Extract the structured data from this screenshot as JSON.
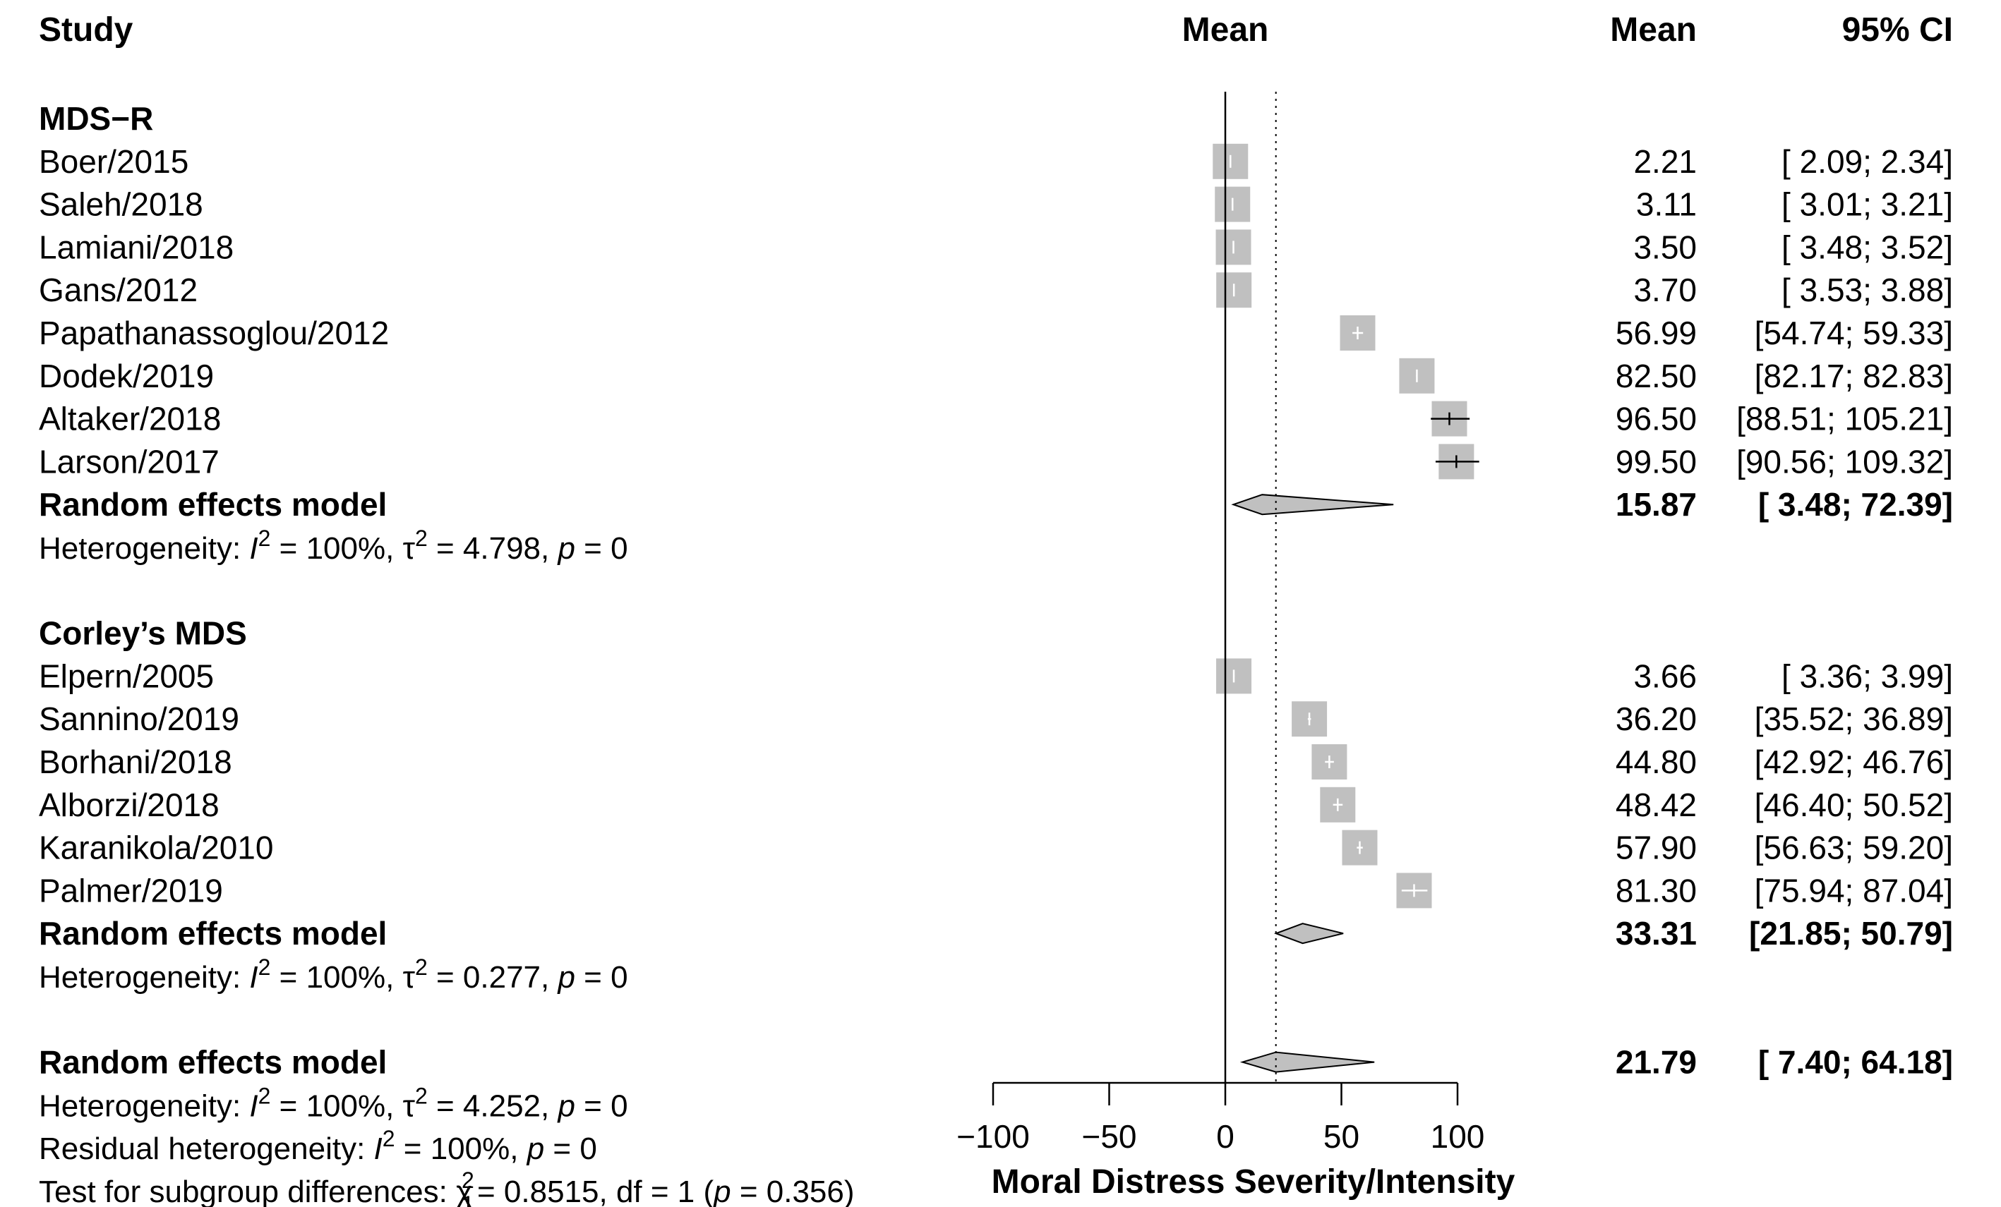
{
  "headers": {
    "study": "Study",
    "plot_mean": "Mean",
    "mean": "Mean",
    "ci": "95% CI"
  },
  "chart_data": {
    "type": "forest",
    "xlabel": "Moral Distress Severity/Intensity",
    "xticks": [
      "−100",
      "−50",
      "0",
      "50",
      "100"
    ],
    "xtick_values": [
      -100,
      -50,
      0,
      50,
      100
    ],
    "xlim": [
      -100,
      100
    ],
    "reference_line": 0,
    "overall_line": 21.79,
    "groups": [
      {
        "name": "MDS−R",
        "studies": [
          {
            "study": "Boer/2015",
            "mean": 2.21,
            "lo": 2.09,
            "hi": 2.34,
            "mean_text": "2.21",
            "ci_text": "[ 2.09;   2.34]"
          },
          {
            "study": "Saleh/2018",
            "mean": 3.11,
            "lo": 3.01,
            "hi": 3.21,
            "mean_text": "3.11",
            "ci_text": "[ 3.01;   3.21]"
          },
          {
            "study": "Lamiani/2018",
            "mean": 3.5,
            "lo": 3.48,
            "hi": 3.52,
            "mean_text": "3.50",
            "ci_text": "[ 3.48;   3.52]"
          },
          {
            "study": "Gans/2012",
            "mean": 3.7,
            "lo": 3.53,
            "hi": 3.88,
            "mean_text": "3.70",
            "ci_text": "[ 3.53;   3.88]"
          },
          {
            "study": "Papathanassoglou/2012",
            "mean": 56.99,
            "lo": 54.74,
            "hi": 59.33,
            "mean_text": "56.99",
            "ci_text": "[54.74;  59.33]"
          },
          {
            "study": "Dodek/2019",
            "mean": 82.5,
            "lo": 82.17,
            "hi": 82.83,
            "mean_text": "82.50",
            "ci_text": "[82.17;  82.83]"
          },
          {
            "study": "Altaker/2018",
            "mean": 96.5,
            "lo": 88.51,
            "hi": 105.21,
            "mean_text": "96.50",
            "ci_text": "[88.51; 105.21]"
          },
          {
            "study": "Larson/2017",
            "mean": 99.5,
            "lo": 90.56,
            "hi": 109.32,
            "mean_text": "99.50",
            "ci_text": "[90.56; 109.32]"
          }
        ],
        "model": {
          "label": "Random effects model",
          "mean": 15.87,
          "lo": 3.48,
          "hi": 72.39,
          "mean_text": "15.87",
          "ci_text": "[ 3.48;  72.39]"
        },
        "heterogeneity": {
          "prefix": "Heterogeneity: ",
          "i_symbol": "I",
          "sup": "2",
          "mid": " = 100%, ",
          "tau_symbol": "τ",
          "tau_value": " = 4.798, ",
          "p_symbol": "p",
          "p_value": " = 0"
        }
      },
      {
        "name": "Corley’s MDS",
        "studies": [
          {
            "study": "Elpern/2005",
            "mean": 3.66,
            "lo": 3.36,
            "hi": 3.99,
            "mean_text": "3.66",
            "ci_text": "[ 3.36;   3.99]"
          },
          {
            "study": "Sannino/2019",
            "mean": 36.2,
            "lo": 35.52,
            "hi": 36.89,
            "mean_text": "36.20",
            "ci_text": "[35.52;  36.89]"
          },
          {
            "study": "Borhani/2018",
            "mean": 44.8,
            "lo": 42.92,
            "hi": 46.76,
            "mean_text": "44.80",
            "ci_text": "[42.92;  46.76]"
          },
          {
            "study": "Alborzi/2018",
            "mean": 48.42,
            "lo": 46.4,
            "hi": 50.52,
            "mean_text": "48.42",
            "ci_text": "[46.40;  50.52]"
          },
          {
            "study": "Karanikola/2010",
            "mean": 57.9,
            "lo": 56.63,
            "hi": 59.2,
            "mean_text": "57.90",
            "ci_text": "[56.63;  59.20]"
          },
          {
            "study": "Palmer/2019",
            "mean": 81.3,
            "lo": 75.94,
            "hi": 87.04,
            "mean_text": "81.30",
            "ci_text": "[75.94;  87.04]"
          }
        ],
        "model": {
          "label": "Random effects model",
          "mean": 33.31,
          "lo": 21.85,
          "hi": 50.79,
          "mean_text": "33.31",
          "ci_text": "[21.85;  50.79]"
        },
        "heterogeneity": {
          "prefix": "Heterogeneity: ",
          "i_symbol": "I",
          "sup": "2",
          "mid": " = 100%, ",
          "tau_symbol": "τ",
          "tau_value": " = 0.277, ",
          "p_symbol": "p",
          "p_value": " = 0"
        }
      }
    ],
    "overall": {
      "model": {
        "label": "Random effects model",
        "mean": 21.79,
        "lo": 7.4,
        "hi": 64.18,
        "mean_text": "21.79",
        "ci_text": "[ 7.40;  64.18]"
      },
      "heterogeneity": {
        "prefix": "Heterogeneity: ",
        "i_symbol": "I",
        "sup": "2",
        "mid": " = 100%, ",
        "tau_symbol": "τ",
        "tau_value": " = 4.252, ",
        "p_symbol": "p",
        "p_value": " = 0"
      },
      "residual": {
        "prefix": "Residual heterogeneity: ",
        "i_symbol": "I",
        "sup": "2",
        "mid": " = 100%, ",
        "p_symbol": "p",
        "p_value": " = 0"
      },
      "subgroup_test": {
        "prefix": "Test for subgroup differences: ",
        "chi_symbol": "χ",
        "chi_sup": "2",
        "chi_sub": "1",
        "stat": " = 0.8515, df = 1 (",
        "p_symbol": "p",
        "p_value": " = 0.356)"
      }
    }
  },
  "colors": {
    "box": "#c0c0c0",
    "diamond": "#c0c0c0",
    "line": "#000000"
  }
}
